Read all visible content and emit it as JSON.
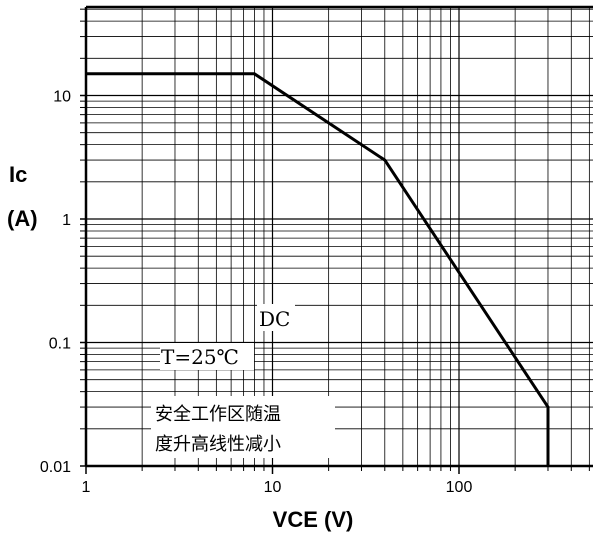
{
  "chart_data": {
    "type": "line",
    "x_scale": "log",
    "y_scale": "log",
    "xlim": [
      1,
      600
    ],
    "ylim": [
      0.01,
      70
    ],
    "xlabel": "VCE (V)",
    "ylabel_line1": "Ic",
    "ylabel_line2": "(A)",
    "x_ticks": [
      {
        "value": 1,
        "label": "1"
      },
      {
        "value": 10,
        "label": "10"
      },
      {
        "value": 100,
        "label": "100"
      }
    ],
    "y_ticks": [
      {
        "value": 10,
        "label": "10"
      },
      {
        "value": 1,
        "label": "1"
      },
      {
        "value": 0.1,
        "label": "0.1"
      },
      {
        "value": 0.01,
        "label": "0.01"
      }
    ],
    "grid": true,
    "series": [
      {
        "points": [
          {
            "x": 1,
            "y": 15
          },
          {
            "x": 8,
            "y": 15
          },
          {
            "x": 40,
            "y": 3
          },
          {
            "x": 300,
            "y": 0.03
          },
          {
            "x": 300,
            "y": 0.01
          }
        ]
      }
    ],
    "annotations": {
      "dc": "DC",
      "temperature": "T=25℃",
      "note_line1": "安全工作区随温",
      "note_line2": "度升高线性减小"
    }
  }
}
